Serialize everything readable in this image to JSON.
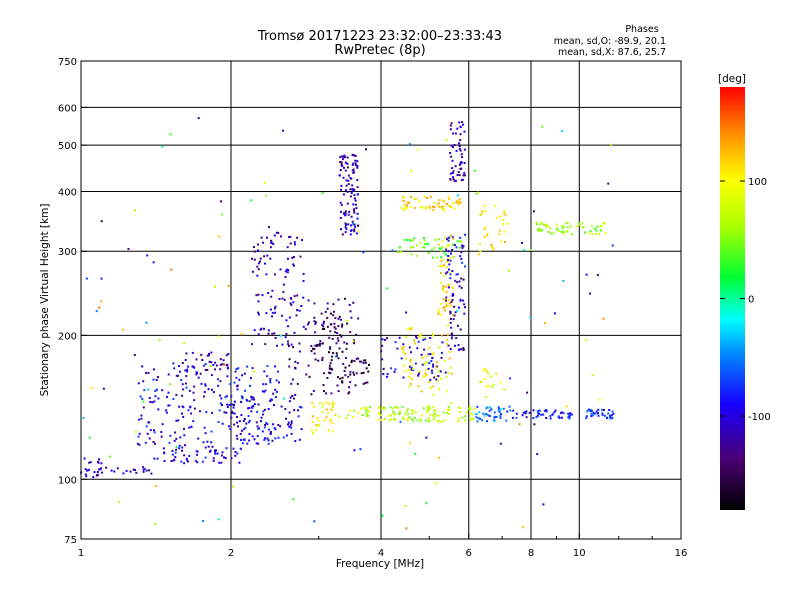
{
  "chart_data": {
    "type": "scatter",
    "title": "Tromsø 20171223 23:32:00–23:33:43",
    "subtitle": "RwPretec (8p)",
    "stats": {
      "heading": "Phases",
      "o_line": "mean, sd,O: -89.9, 20.1",
      "x_line": "mean, sd,X:  87.6, 25.7"
    },
    "xlabel": "Frequency [MHz]",
    "ylabel": "Stationary phase Virtual Height [km]",
    "x_scale": "log",
    "y_scale": "log",
    "xlim": [
      1,
      16
    ],
    "ylim": [
      75,
      750
    ],
    "x_ticks": [
      1,
      2,
      4,
      6,
      8,
      10,
      16
    ],
    "x_tick_labels": [
      "1",
      "2",
      "4",
      "6",
      "8",
      "10",
      "16"
    ],
    "y_ticks": [
      75,
      100,
      200,
      300,
      400,
      500,
      600,
      750
    ],
    "y_tick_labels": [
      "75",
      "100",
      "200",
      "300",
      "400",
      "500",
      "600",
      "750"
    ],
    "grid": true,
    "colorbar": {
      "label": "[deg]",
      "range": [
        -180,
        180
      ],
      "ticks": [
        -100,
        0,
        100
      ],
      "tick_labels": [
        "-100",
        "0",
        "100"
      ]
    },
    "clusters": [
      {
        "x": [
          1.0,
          1.1
        ],
        "y": [
          100,
          112
        ],
        "phase": -100,
        "n": 22
      },
      {
        "x": [
          1.1,
          1.4
        ],
        "y": [
          102,
          106
        ],
        "phase": -110,
        "n": 18
      },
      {
        "x": [
          1.4,
          2.1
        ],
        "y": [
          108,
          118
        ],
        "phase": -100,
        "n": 60
      },
      {
        "x": [
          1.3,
          2.5
        ],
        "y": [
          118,
          175
        ],
        "phase": -95,
        "n": 220
      },
      {
        "x": [
          1.6,
          2.0
        ],
        "y": [
          165,
          185
        ],
        "phase": -110,
        "n": 40
      },
      {
        "x": [
          2.0,
          2.8
        ],
        "y": [
          120,
          150
        ],
        "phase": -100,
        "n": 80
      },
      {
        "x": [
          2.2,
          2.8
        ],
        "y": [
          190,
          330
        ],
        "phase": -112,
        "n": 110
      },
      {
        "x": [
          2.6,
          3.6
        ],
        "y": [
          150,
          240
        ],
        "phase": -130,
        "n": 90
      },
      {
        "x": [
          2.9,
          3.4
        ],
        "y": [
          180,
          225
        ],
        "phase": -145,
        "n": 40
      },
      {
        "x": [
          2.9,
          3.3
        ],
        "y": [
          125,
          145
        ],
        "phase": 100,
        "n": 35
      },
      {
        "x": [
          3.3,
          3.6
        ],
        "y": [
          325,
          480
        ],
        "phase": -115,
        "n": 110
      },
      {
        "x": [
          3.1,
          3.8
        ],
        "y": [
          155,
          180
        ],
        "phase": -150,
        "n": 40
      },
      {
        "x": [
          3.4,
          6.2
        ],
        "y": [
          132,
          142
        ],
        "phase": 70,
        "n": 120
      },
      {
        "x": [
          4.0,
          5.4
        ],
        "y": [
          160,
          200
        ],
        "phase": -100,
        "n": 60
      },
      {
        "x": [
          4.4,
          5.6
        ],
        "y": [
          150,
          210
        ],
        "phase": 100,
        "n": 70
      },
      {
        "x": [
          4.3,
          5.8
        ],
        "y": [
          365,
          390
        ],
        "phase": 110,
        "n": 60
      },
      {
        "x": [
          4.3,
          5.8
        ],
        "y": [
          290,
          320
        ],
        "phase": 40,
        "n": 45
      },
      {
        "x": [
          5.2,
          5.6
        ],
        "y": [
          215,
          330
        ],
        "phase": 110,
        "n": 50
      },
      {
        "x": [
          5.5,
          5.9
        ],
        "y": [
          420,
          560
        ],
        "phase": -115,
        "n": 55
      },
      {
        "x": [
          5.4,
          5.9
        ],
        "y": [
          185,
          270
        ],
        "phase": -120,
        "n": 45
      },
      {
        "x": [
          5.4,
          5.9
        ],
        "y": [
          255,
          330
        ],
        "phase": -95,
        "n": 35
      },
      {
        "x": [
          6.2,
          7.3
        ],
        "y": [
          132,
          142
        ],
        "phase": -50,
        "n": 40
      },
      {
        "x": [
          6.3,
          7.2
        ],
        "y": [
          300,
          380
        ],
        "phase": 110,
        "n": 30
      },
      {
        "x": [
          6.3,
          7.0
        ],
        "y": [
          155,
          170
        ],
        "phase": 90,
        "n": 15
      },
      {
        "x": [
          7.3,
          9.7
        ],
        "y": [
          134,
          140
        ],
        "phase": -85,
        "n": 50
      },
      {
        "x": [
          8.2,
          11.3
        ],
        "y": [
          325,
          345
        ],
        "phase": 60,
        "n": 60
      },
      {
        "x": [
          10.3,
          11.8
        ],
        "y": [
          134,
          140
        ],
        "phase": -80,
        "n": 35
      },
      {
        "x": [
          1.0,
          12.0
        ],
        "y": [
          75,
          620
        ],
        "phase": 0,
        "n": 130,
        "sparse": true
      }
    ]
  }
}
